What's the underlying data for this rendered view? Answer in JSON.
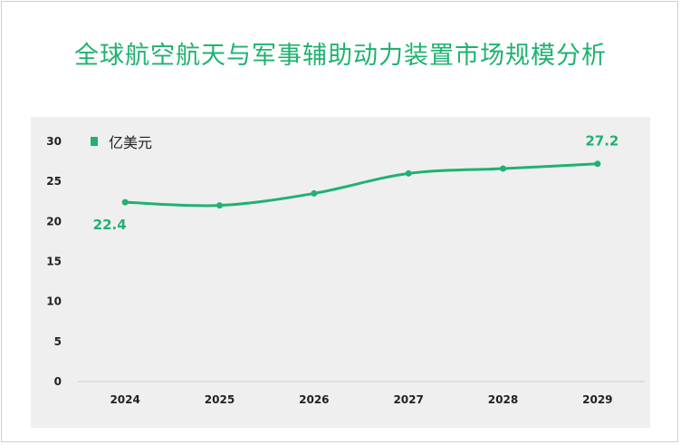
{
  "title": "全球航空航天与军事辅助动力装置市场规模分析",
  "colors": {
    "series": "#1fb270",
    "label": "#1fb270",
    "axis_text": "#222222"
  },
  "chart_data": {
    "type": "line",
    "title": "全球航空航天与军事辅助动力装置市场规模分析",
    "categories": [
      "2024",
      "2025",
      "2026",
      "2027",
      "2028",
      "2029"
    ],
    "series": [
      {
        "name": "亿美元",
        "values": [
          22.4,
          22.0,
          23.5,
          26.0,
          26.6,
          27.2
        ]
      }
    ],
    "data_labels": [
      {
        "index": 0,
        "text": "22.4"
      },
      {
        "index": 5,
        "text": "27.2"
      }
    ],
    "yticks": [
      "0",
      "5",
      "10",
      "15",
      "20",
      "25",
      "30"
    ],
    "ylim": [
      0,
      30
    ],
    "xlabel": "",
    "ylabel": "",
    "grid": false,
    "legend_position": "top-left",
    "smooth": true
  }
}
